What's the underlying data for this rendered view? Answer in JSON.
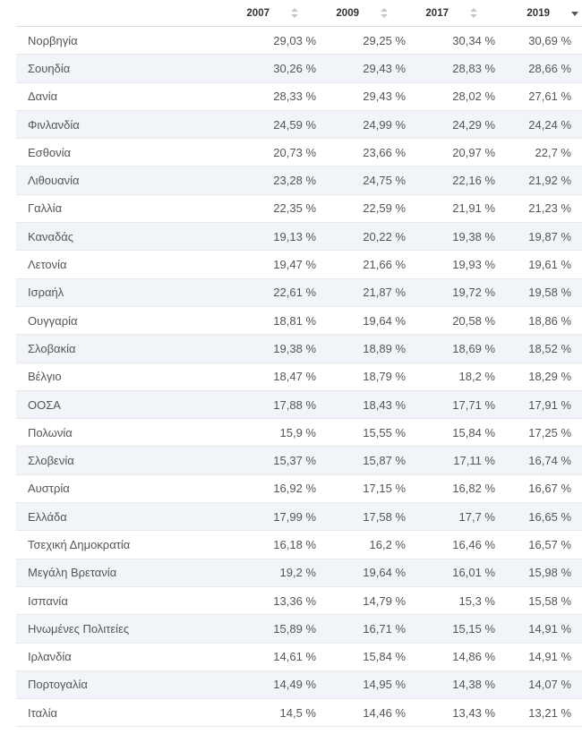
{
  "table": {
    "columns": [
      {
        "key": "country",
        "label": "",
        "sortable": false
      },
      {
        "key": "2007",
        "label": "2007",
        "sortable": true,
        "sort_state": "none"
      },
      {
        "key": "2009",
        "label": "2009",
        "sortable": true,
        "sort_state": "none"
      },
      {
        "key": "2017",
        "label": "2017",
        "sortable": true,
        "sort_state": "none"
      },
      {
        "key": "2019",
        "label": "2019",
        "sortable": true,
        "sort_state": "descending"
      }
    ],
    "rows": [
      {
        "country": "Νορβηγία",
        "2007": "29,03 %",
        "2009": "29,25 %",
        "2017": "30,34 %",
        "2019": "30,69 %"
      },
      {
        "country": "Σουηδία",
        "2007": "30,26 %",
        "2009": "29,43 %",
        "2017": "28,83 %",
        "2019": "28,66 %"
      },
      {
        "country": "Δανία",
        "2007": "28,33 %",
        "2009": "29,43 %",
        "2017": "28,02 %",
        "2019": "27,61 %"
      },
      {
        "country": "Φινλανδία",
        "2007": "24,59 %",
        "2009": "24,99 %",
        "2017": "24,29 %",
        "2019": "24,24 %"
      },
      {
        "country": "Εσθονία",
        "2007": "20,73 %",
        "2009": "23,66 %",
        "2017": "20,97 %",
        "2019": "22,7 %"
      },
      {
        "country": "Λιθουανία",
        "2007": "23,28 %",
        "2009": "24,75 %",
        "2017": "22,16 %",
        "2019": "21,92 %"
      },
      {
        "country": "Γαλλία",
        "2007": "22,35 %",
        "2009": "22,59 %",
        "2017": "21,91 %",
        "2019": "21,23 %"
      },
      {
        "country": "Καναδάς",
        "2007": "19,13 %",
        "2009": "20,22 %",
        "2017": "19,38 %",
        "2019": "19,87 %"
      },
      {
        "country": "Λετονία",
        "2007": "19,47 %",
        "2009": "21,66 %",
        "2017": "19,93 %",
        "2019": "19,61 %"
      },
      {
        "country": "Ισραήλ",
        "2007": "22,61 %",
        "2009": "21,87 %",
        "2017": "19,72 %",
        "2019": "19,58 %"
      },
      {
        "country": "Ουγγαρία",
        "2007": "18,81 %",
        "2009": "19,64 %",
        "2017": "20,58 %",
        "2019": "18,86 %"
      },
      {
        "country": "Σλοβακία",
        "2007": "19,38 %",
        "2009": "18,89 %",
        "2017": "18,69 %",
        "2019": "18,52 %"
      },
      {
        "country": "Βέλγιο",
        "2007": "18,47 %",
        "2009": "18,79 %",
        "2017": "18,2 %",
        "2019": "18,29 %"
      },
      {
        "country": "ΟΟΣΑ",
        "2007": "17,88 %",
        "2009": "18,43 %",
        "2017": "17,71 %",
        "2019": "17,91 %"
      },
      {
        "country": "Πολωνία",
        "2007": "15,9 %",
        "2009": "15,55 %",
        "2017": "15,84 %",
        "2019": "17,25 %"
      },
      {
        "country": "Σλοβενία",
        "2007": "15,37 %",
        "2009": "15,87 %",
        "2017": "17,11 %",
        "2019": "16,74 %"
      },
      {
        "country": "Αυστρία",
        "2007": "16,92 %",
        "2009": "17,15 %",
        "2017": "16,82 %",
        "2019": "16,67 %"
      },
      {
        "country": "Ελλάδα",
        "2007": "17,99 %",
        "2009": "17,58 %",
        "2017": "17,7 %",
        "2019": "16,65 %"
      },
      {
        "country": "Τσεχική Δημοκρατία",
        "2007": "16,18 %",
        "2009": "16,2 %",
        "2017": "16,46 %",
        "2019": "16,57 %"
      },
      {
        "country": "Μεγάλη Βρετανία",
        "2007": "19,2 %",
        "2009": "19,64 %",
        "2017": "16,01 %",
        "2019": "15,98 %"
      },
      {
        "country": "Ισπανία",
        "2007": "13,36 %",
        "2009": "14,79 %",
        "2017": "15,3 %",
        "2019": "15,58 %"
      },
      {
        "country": "Ηνωμένες Πολιτείες",
        "2007": "15,89 %",
        "2009": "16,71 %",
        "2017": "15,15 %",
        "2019": "14,91 %"
      },
      {
        "country": "Ιρλανδία",
        "2007": "14,61 %",
        "2009": "15,84 %",
        "2017": "14,86 %",
        "2019": "14,91 %"
      },
      {
        "country": "Πορτογαλία",
        "2007": "14,49 %",
        "2009": "14,95 %",
        "2017": "14,38 %",
        "2019": "14,07 %"
      },
      {
        "country": "Ιταλία",
        "2007": "14,5 %",
        "2009": "14,46 %",
        "2017": "13,43 %",
        "2019": "13,21 %"
      }
    ]
  },
  "icons": {
    "sort_inactive": "sort-icon",
    "sort_active": "sort-desc-icon"
  },
  "colors": {
    "header_text": "#333333",
    "cell_text": "#555555",
    "stripe": "#f1f5f9",
    "sort_inactive": "#c7c7c7",
    "sort_active": "#555555"
  }
}
